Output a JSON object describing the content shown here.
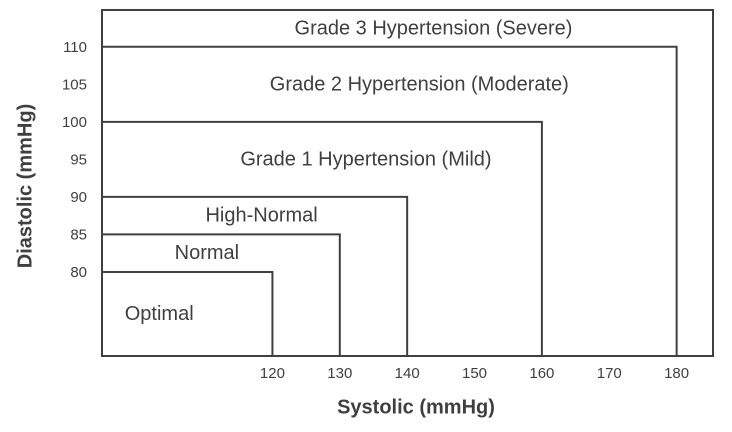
{
  "chart_data": {
    "type": "area",
    "subtype": "nested-step-regions",
    "title": "",
    "xlabel": "Systolic (mmHg)",
    "ylabel": "Diastolic (mmHg)",
    "xlim": [
      94.7,
      185.4
    ],
    "ylim": [
      68.8,
      114.9
    ],
    "x_ticks": [
      120,
      130,
      140,
      150,
      160,
      170,
      180
    ],
    "y_ticks": [
      80,
      85,
      90,
      95,
      100,
      105,
      110
    ],
    "grid": false,
    "legend": "none",
    "regions": [
      {
        "label": "Optimal",
        "systolic_max": 120,
        "diastolic_max": 80,
        "label_offset_x": -28
      },
      {
        "label": "Normal",
        "systolic_max": 130,
        "diastolic_max": 85,
        "label_offset_x": -14
      },
      {
        "label": "High-Normal",
        "systolic_max": 140,
        "diastolic_max": 90,
        "label_offset_x": 7
      },
      {
        "label": "Grade 1 Hypertension (Mild)",
        "systolic_max": 160,
        "diastolic_max": 100,
        "label_offset_x": 44
      },
      {
        "label": "Grade 2 Hypertension (Moderate)",
        "systolic_max": 180,
        "diastolic_max": 110,
        "label_offset_x": 30
      },
      {
        "label": "Grade 3 Hypertension (Severe)",
        "systolic_max": null,
        "diastolic_max": null,
        "label_offset_x": 26
      }
    ],
    "colors": {
      "line": "#404040",
      "text": "#3f3f3f",
      "background": "#ffffff"
    }
  }
}
